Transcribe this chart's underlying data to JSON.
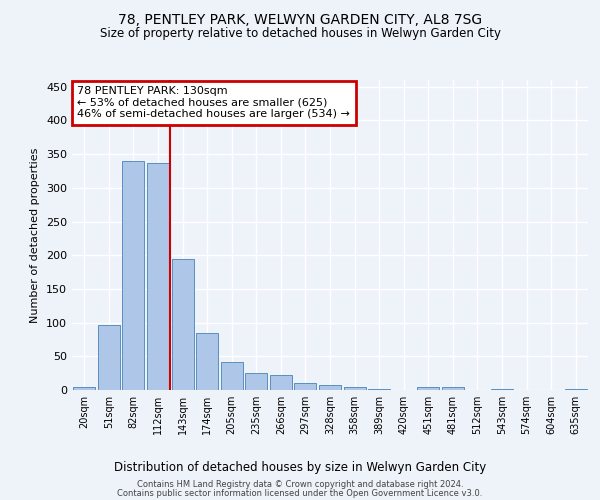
{
  "title1": "78, PENTLEY PARK, WELWYN GARDEN CITY, AL8 7SG",
  "title2": "Size of property relative to detached houses in Welwyn Garden City",
  "xlabel": "Distribution of detached houses by size in Welwyn Garden City",
  "ylabel": "Number of detached properties",
  "footer1": "Contains HM Land Registry data © Crown copyright and database right 2024.",
  "footer2": "Contains public sector information licensed under the Open Government Licence v3.0.",
  "annotation_line1": "78 PENTLEY PARK: 130sqm",
  "annotation_line2": "← 53% of detached houses are smaller (625)",
  "annotation_line3": "46% of semi-detached houses are larger (534) →",
  "bar_labels": [
    "20sqm",
    "51sqm",
    "82sqm",
    "112sqm",
    "143sqm",
    "174sqm",
    "205sqm",
    "235sqm",
    "266sqm",
    "297sqm",
    "328sqm",
    "358sqm",
    "389sqm",
    "420sqm",
    "451sqm",
    "481sqm",
    "512sqm",
    "543sqm",
    "574sqm",
    "604sqm",
    "635sqm"
  ],
  "bar_values": [
    5,
    97,
    340,
    337,
    195,
    84,
    42,
    25,
    23,
    11,
    8,
    5,
    2,
    0,
    5,
    5,
    0,
    1,
    0,
    0,
    2
  ],
  "bar_color": "#aec6e8",
  "bar_edge_color": "#5a8fc0",
  "red_line_color": "#cc0000",
  "annotation_box_color": "#cc0000",
  "background_color": "#eef2f9",
  "grid_color": "#ffffff",
  "ylim": [
    0,
    460
  ],
  "yticks": [
    0,
    50,
    100,
    150,
    200,
    250,
    300,
    350,
    400,
    450
  ],
  "red_line_x": 3.48
}
